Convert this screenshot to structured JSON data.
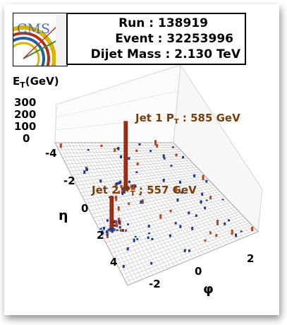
{
  "header": {
    "logo_text": "CMS",
    "run_label": "Run",
    "run_value": "138919",
    "event_label": "Event",
    "event_value": "32253996",
    "mass_label": "Dijet Mass",
    "mass_value": "2.130 TeV"
  },
  "chart_data": {
    "type": "lego",
    "z_label_main": "E",
    "z_label_sub": "T",
    "z_label_unit": "(GeV)",
    "z_ticks": [
      "300",
      "200",
      "100",
      "0"
    ],
    "zlim": [
      0,
      300
    ],
    "eta_label": "η",
    "eta_ticks": [
      "-4",
      "-2",
      "0",
      "2",
      "4"
    ],
    "phi_label": "φ",
    "phi_ticks": [
      "-2",
      "0",
      "2"
    ],
    "grid": true,
    "annotations": [
      {
        "name": "jet1",
        "prefix": "Jet 1 P",
        "sub": "T",
        "suffix": " : 585 GeV",
        "pt_gev": 585
      },
      {
        "name": "jet2",
        "prefix": "Jet 2 P",
        "sub": "T",
        "suffix": " : 557 GeV",
        "pt_gev": 557
      }
    ],
    "towers": [
      {
        "name": "jet1-tower",
        "eta": -1.3,
        "phi": -0.9,
        "et": 300,
        "color": "#a62a10"
      },
      {
        "name": "jet2-tower",
        "eta": 1.3,
        "phi": -2.6,
        "et": 150,
        "color": "#a62a10"
      }
    ],
    "colors": {
      "em": "#c0401a",
      "had": "#1f3a8a",
      "jet": "#a62a10",
      "grid": "#b5b5b5"
    }
  }
}
